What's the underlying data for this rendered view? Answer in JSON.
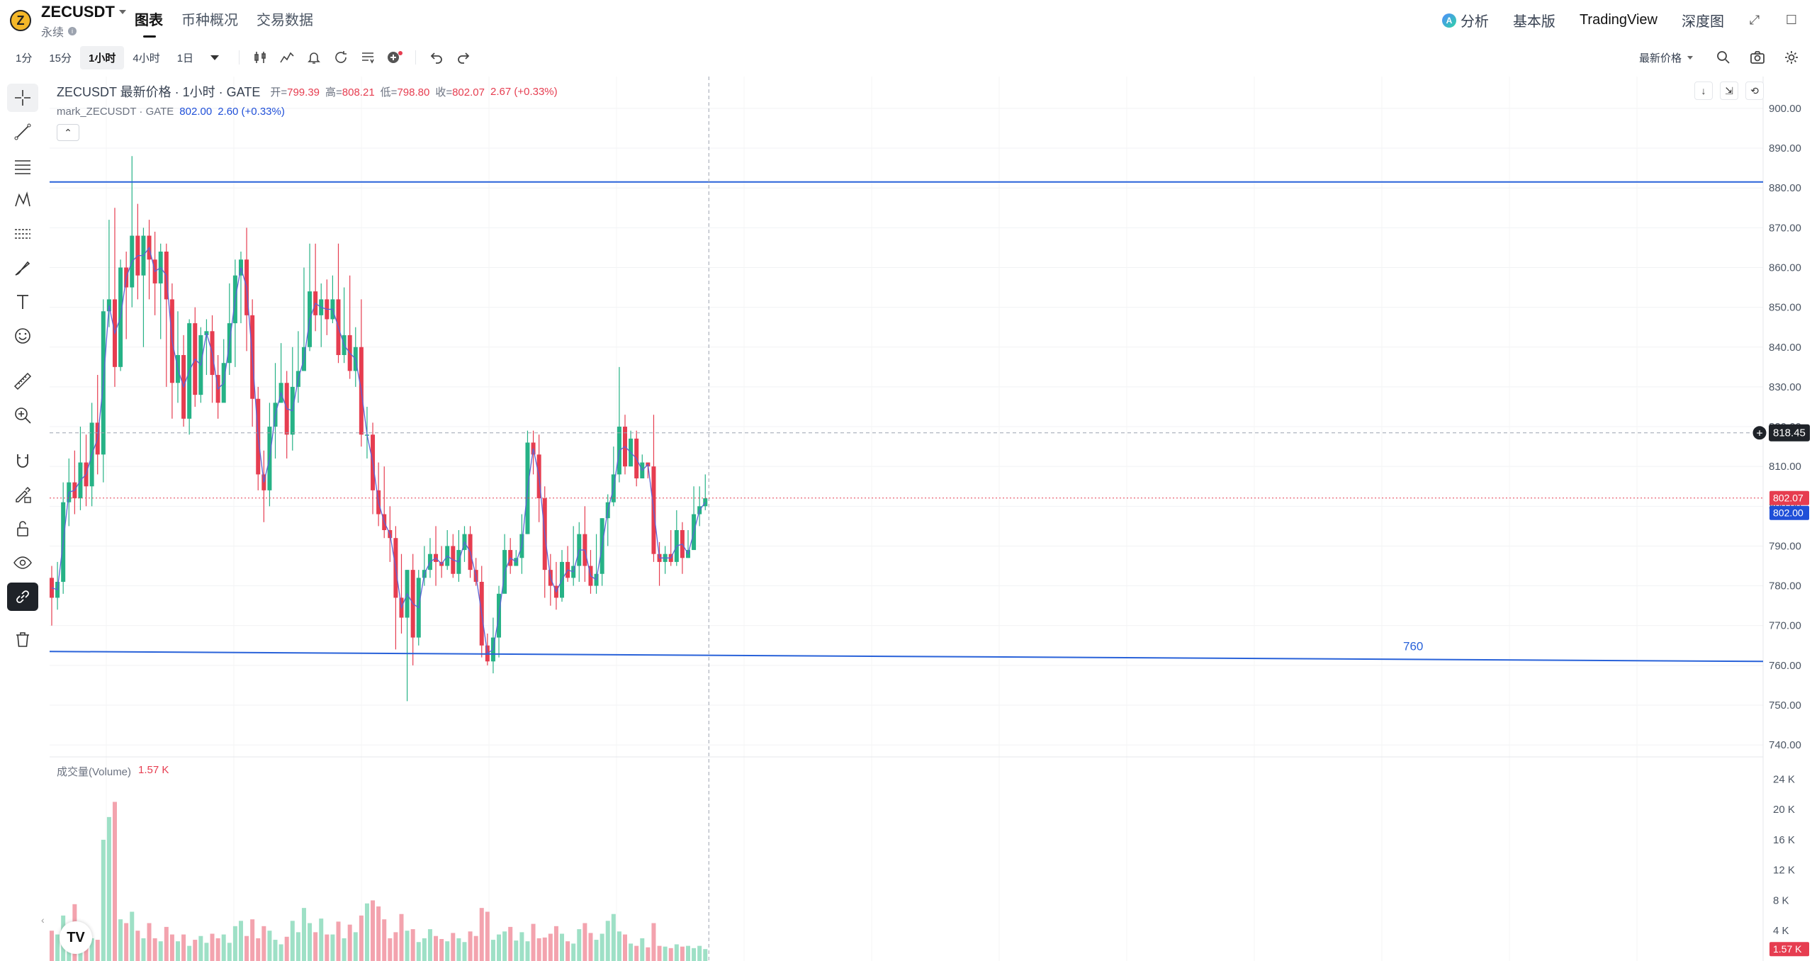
{
  "header": {
    "coin_logo": "Z",
    "symbol": "ZECUSDT",
    "contract_type": "永续",
    "tabs": [
      "图表",
      "币种概况",
      "交易数据"
    ],
    "right_tabs": {
      "analysis": "分析",
      "basic": "基本版",
      "tradingview": "TradingView",
      "depth": "深度图"
    }
  },
  "toolbar": {
    "intervals": [
      "1分",
      "15分",
      "1小时",
      "4小时",
      "1日"
    ],
    "active_interval": "1小时",
    "price_mode": "最新价格",
    "icons": [
      "candles-icon",
      "indicators-icon",
      "alert-icon",
      "replay-icon",
      "templates-icon",
      "add-icon",
      "undo-icon",
      "redo-icon",
      "search-icon",
      "camera-icon",
      "settings-icon"
    ]
  },
  "legend": {
    "title": "ZECUSDT 最新价格 · 1小时 · GATE",
    "open_label": "开=",
    "open": "799.39",
    "high_label": "高=",
    "high": "808.21",
    "low_label": "低=",
    "low": "798.80",
    "close_label": "收=",
    "close": "802.07",
    "change": "2.67 (+0.33%)",
    "mark_title": "mark_ZECUSDT · GATE",
    "mark_price": "802.00",
    "mark_change": "2.60 (+0.33%)",
    "collapse_symbol": "⌃"
  },
  "volume_legend": {
    "title": "成交量(Volume)",
    "value": "1.57 K"
  },
  "colors": {
    "up": "#26b286",
    "down": "#e63d50",
    "up_vol": "#9ee0c6",
    "down_vol": "#f3a3ae",
    "hline": "#2962d9",
    "mark_badge": "#1f4fd8"
  },
  "price_axis": [
    "900.00",
    "890.00",
    "880.00",
    "870.00",
    "860.00",
    "850.00",
    "840.00",
    "830.00",
    "820.00",
    "810.00",
    "800.00",
    "790.00",
    "780.00",
    "770.00",
    "760.00",
    "750.00",
    "740.00"
  ],
  "volume_axis": [
    "24 K",
    "20 K",
    "16 K",
    "12 K",
    "8 K",
    "4 K"
  ],
  "badges": {
    "crosshair": "818.45",
    "last": "802.07",
    "mark": "802.00",
    "volume": "1.57 K"
  },
  "drawings": {
    "support_label": "760"
  },
  "chart_data": {
    "type": "candlestick",
    "ylim": [
      737,
      908
    ],
    "volume_ylim": [
      0,
      26000
    ],
    "resistance_level": 881.5,
    "support_line": {
      "start": 763.5,
      "end": 761.0
    },
    "crosshair_price": 818.45,
    "last_close": 802.07,
    "mark_price": 802.0,
    "candles": [
      [
        782,
        777,
        785,
        770,
        4000
      ],
      [
        777,
        781,
        786,
        774,
        3500
      ],
      [
        781,
        801,
        806,
        778,
        6000
      ],
      [
        801,
        806,
        812,
        795,
        4000
      ],
      [
        806,
        802,
        814,
        798,
        7500
      ],
      [
        802,
        811,
        820,
        799,
        4500
      ],
      [
        811,
        805,
        818,
        800,
        2400
      ],
      [
        805,
        821,
        826,
        800,
        3000
      ],
      [
        821,
        813,
        833,
        808,
        2800
      ],
      [
        813,
        849,
        852,
        806,
        16000
      ],
      [
        849,
        852,
        872,
        845,
        19000
      ],
      [
        852,
        835,
        875,
        830,
        21000
      ],
      [
        835,
        860,
        862,
        834,
        5500
      ],
      [
        860,
        855,
        864,
        842,
        5000
      ],
      [
        855,
        868,
        888,
        850,
        6500
      ],
      [
        868,
        858,
        876,
        852,
        4000
      ],
      [
        858,
        868,
        870,
        840,
        3000
      ],
      [
        868,
        862,
        872,
        852,
        5000
      ],
      [
        862,
        856,
        869,
        848,
        3000
      ],
      [
        856,
        864,
        866,
        842,
        2600
      ],
      [
        864,
        852,
        866,
        830,
        4500
      ],
      [
        852,
        831,
        856,
        822,
        3500
      ],
      [
        831,
        838,
        849,
        826,
        2600
      ],
      [
        838,
        822,
        843,
        820,
        3500
      ],
      [
        822,
        846,
        847,
        818,
        2000
      ],
      [
        846,
        828,
        850,
        825,
        2800
      ],
      [
        828,
        843,
        845,
        826,
        3300
      ],
      [
        843,
        844,
        847,
        833,
        2400
      ],
      [
        844,
        833,
        848,
        826,
        3600
      ],
      [
        833,
        826,
        838,
        822,
        3000
      ],
      [
        826,
        836,
        842,
        829,
        3500
      ],
      [
        836,
        846,
        856,
        833,
        2400
      ],
      [
        846,
        858,
        862,
        835,
        4600
      ],
      [
        858,
        862,
        864,
        846,
        5300
      ],
      [
        862,
        848,
        870,
        839,
        3300
      ],
      [
        848,
        827,
        852,
        820,
        5500
      ],
      [
        827,
        808,
        830,
        804,
        3000
      ],
      [
        808,
        804,
        814,
        796,
        4600
      ],
      [
        804,
        820,
        826,
        800,
        4000
      ],
      [
        820,
        826,
        836,
        812,
        2800
      ],
      [
        826,
        831,
        841,
        826,
        2200
      ],
      [
        831,
        818,
        834,
        812,
        3200
      ],
      [
        818,
        830,
        840,
        814,
        5300
      ],
      [
        830,
        834,
        844,
        826,
        3800
      ],
      [
        834,
        840,
        860,
        837,
        7000
      ],
      [
        840,
        854,
        866,
        839,
        5000
      ],
      [
        854,
        848,
        866,
        844,
        3800
      ],
      [
        848,
        852,
        856,
        840,
        5600
      ],
      [
        852,
        847,
        857,
        843,
        3500
      ],
      [
        847,
        852,
        858,
        846,
        3500
      ],
      [
        852,
        838,
        866,
        836,
        5200
      ],
      [
        838,
        843,
        855,
        836,
        3000
      ],
      [
        843,
        834,
        858,
        832,
        4800
      ],
      [
        834,
        840,
        845,
        830,
        3800
      ],
      [
        840,
        818,
        852,
        815,
        6000
      ],
      [
        818,
        818,
        825,
        812,
        7600
      ],
      [
        818,
        804,
        821,
        798,
        8000
      ],
      [
        804,
        798,
        811,
        795,
        7200
      ],
      [
        798,
        794,
        810,
        792,
        5500
      ],
      [
        794,
        792,
        800,
        786,
        3000
      ],
      [
        792,
        777,
        795,
        764,
        3800
      ],
      [
        777,
        772,
        788,
        768,
        6200
      ],
      [
        772,
        784,
        784,
        751,
        4000
      ],
      [
        784,
        767,
        788,
        760,
        4200
      ],
      [
        767,
        782,
        784,
        765,
        2500
      ],
      [
        782,
        784,
        790,
        780,
        3000
      ],
      [
        784,
        788,
        792,
        782,
        4200
      ],
      [
        788,
        786,
        795,
        780,
        3300
      ],
      [
        786,
        785,
        790,
        782,
        2900
      ],
      [
        785,
        790,
        794,
        784,
        2600
      ],
      [
        790,
        783,
        793,
        782,
        3700
      ],
      [
        783,
        789,
        794,
        781,
        3000
      ],
      [
        789,
        793,
        795,
        786,
        2500
      ],
      [
        793,
        784,
        795,
        782,
        3900
      ],
      [
        784,
        781,
        787,
        780,
        3300
      ],
      [
        781,
        765,
        785,
        762,
        7000
      ],
      [
        765,
        761,
        768,
        760,
        6500
      ],
      [
        761,
        767,
        772,
        758,
        2800
      ],
      [
        767,
        778,
        780,
        762,
        3500
      ],
      [
        778,
        789,
        793,
        779,
        3900
      ],
      [
        789,
        785,
        792,
        783,
        4500
      ],
      [
        785,
        787,
        789,
        785,
        2700
      ],
      [
        787,
        793,
        798,
        783,
        3800
      ],
      [
        793,
        816,
        819,
        793,
        2600
      ],
      [
        816,
        813,
        819,
        808,
        4900
      ],
      [
        813,
        802,
        818,
        796,
        3000
      ],
      [
        802,
        784,
        805,
        777,
        3100
      ],
      [
        784,
        780,
        788,
        775,
        3600
      ],
      [
        780,
        777,
        786,
        774,
        4600
      ],
      [
        777,
        786,
        789,
        776,
        3600
      ],
      [
        786,
        782,
        790,
        781,
        2600
      ],
      [
        782,
        785,
        795,
        780,
        2300
      ],
      [
        785,
        793,
        796,
        781,
        4200
      ],
      [
        793,
        785,
        800,
        781,
        5000
      ],
      [
        785,
        780,
        789,
        778,
        3700
      ],
      [
        780,
        783,
        793,
        778,
        2800
      ],
      [
        783,
        797,
        797,
        780,
        3600
      ],
      [
        797,
        801,
        803,
        790,
        5300
      ],
      [
        801,
        808,
        815,
        800,
        6200
      ],
      [
        808,
        820,
        835,
        806,
        3900
      ],
      [
        820,
        810,
        823,
        808,
        3500
      ],
      [
        810,
        817,
        819,
        810,
        2300
      ],
      [
        817,
        807,
        819,
        805,
        2000
      ],
      [
        807,
        811,
        813,
        807,
        3000
      ],
      [
        811,
        810,
        810,
        807,
        1800
      ],
      [
        810,
        788,
        823,
        786,
        5000
      ],
      [
        788,
        786,
        791,
        780,
        2000
      ],
      [
        786,
        788,
        790,
        783,
        1900
      ],
      [
        788,
        786,
        794,
        785,
        1700
      ],
      [
        786,
        794,
        799,
        785,
        2200
      ],
      [
        794,
        787,
        796,
        783,
        1900
      ],
      [
        787,
        789,
        794,
        787,
        2000
      ],
      [
        789,
        798,
        805,
        791,
        1700
      ],
      [
        798,
        800,
        805,
        795,
        2000
      ],
      [
        800,
        802,
        808,
        799,
        1570
      ]
    ]
  }
}
